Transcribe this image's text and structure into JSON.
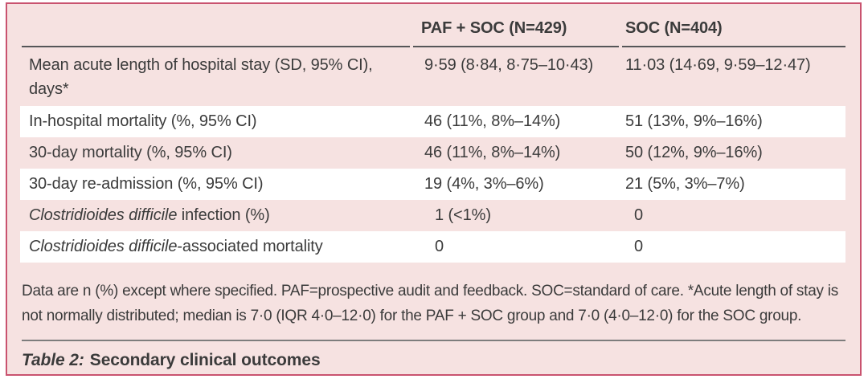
{
  "table": {
    "columns": [
      "",
      "PAF + SOC (N=429)",
      "SOC (N=404)"
    ],
    "rows": [
      {
        "label_italic": "",
        "label": "Mean acute length of hospital stay (SD, 95% CI), days*",
        "paf": "9·59 (8·84, 8·75–10·43)",
        "soc": "11·03 (14·69, 9·59–12·47)"
      },
      {
        "label_italic": "",
        "label": "In-hospital mortality (%, 95% CI)",
        "paf": "46 (11%, 8%–14%)",
        "soc": "51 (13%, 9%–16%)"
      },
      {
        "label_italic": "",
        "label": "30-day mortality (%, 95% CI)",
        "paf": "46 (11%, 8%–14%)",
        "soc": "50 (12%, 9%–16%)"
      },
      {
        "label_italic": "",
        "label": "30-day re-admission (%, 95% CI)",
        "paf": "19 (4%, 3%–6%)",
        "soc": "21 (5%, 3%–7%)"
      },
      {
        "label_italic": "Clostridioides difficile",
        "label": " infection (%)",
        "paf": "1 (<1%)",
        "soc": "0"
      },
      {
        "label_italic": "Clostridioides difficile",
        "label": "-associated mortality",
        "paf": "0",
        "soc": "0"
      }
    ],
    "footnote": "Data are n (%) except where specified. PAF=prospective audit and feedback. SOC=standard of care. *Acute length of stay is not normally distributed; median is 7·0 (IQR 4·0–12·0) for the PAF + SOC group and 7·0 (4·0–12·0) for the SOC group.",
    "caption_prefix": "Table 2:",
    "caption_text": "Secondary clinical outcomes"
  },
  "colors": {
    "panel_border": "#c9536f",
    "panel_background": "#f6e2e1",
    "row_stripe": "#ffffff",
    "text": "#3b3b3b",
    "header_rule": "#565658",
    "footer_rule": "#7d7d7d"
  }
}
